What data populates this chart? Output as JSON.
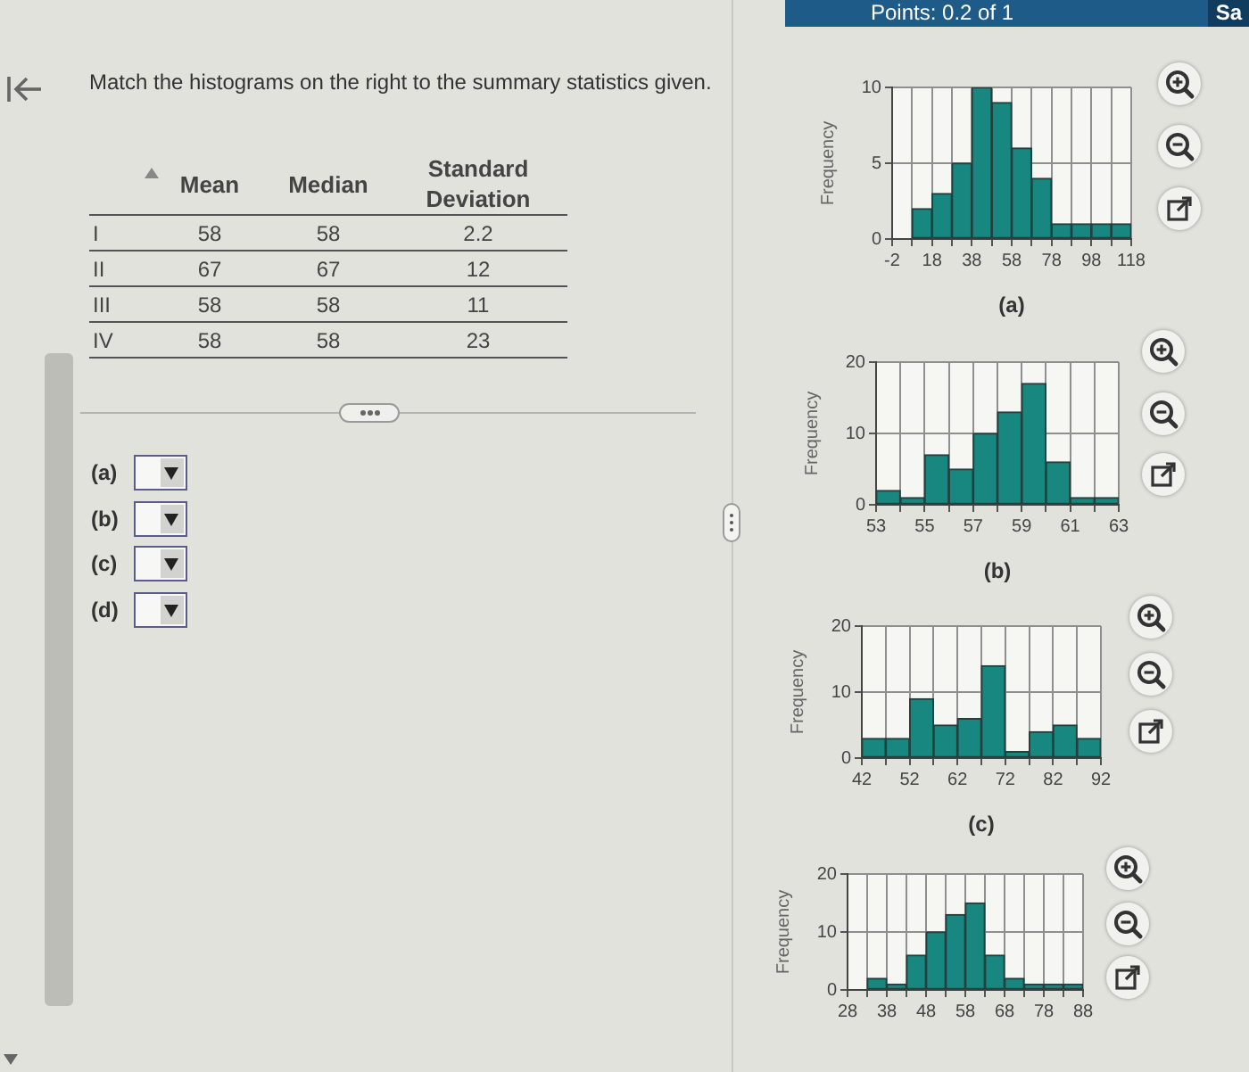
{
  "chart_data": [
    {
      "type": "other",
      "annotations": [
        "Points: 0.2 of 1",
        "Sa"
      ]
    },
    {
      "type": "other",
      "title": "Match the histograms on the right to the summary statistics given.",
      "annotations": [
        "Mean",
        "Median",
        "Standard Deviation",
        "I",
        "58",
        "58",
        "2.2",
        "II",
        "67",
        "67",
        "12",
        "III",
        "58",
        "58",
        "11",
        "IV",
        "58",
        "58",
        "23",
        "(a)",
        "(b)",
        "(c)",
        "(d)"
      ]
    },
    {
      "type": "histogram",
      "xlabel": "(a)",
      "ylabel": "Frequency",
      "bins": [
        8,
        18,
        28,
        38,
        48,
        58,
        68,
        78,
        88,
        98,
        108,
        118
      ],
      "values": [
        2,
        3,
        5,
        10,
        9,
        6,
        4,
        1,
        1,
        1,
        1
      ],
      "color": "#17877f",
      "xlim": [
        -2,
        118
      ],
      "xticks": [
        -2,
        {
          "value": 8,
          "label": null
        },
        18,
        {
          "value": 28,
          "label": null
        },
        38,
        {
          "value": 48,
          "label": null
        },
        58,
        {
          "value": 68,
          "label": null
        },
        78,
        {
          "value": 88,
          "label": null
        },
        98,
        {
          "value": 108,
          "label": null
        },
        118
      ],
      "ylim": [
        0,
        10
      ],
      "yticks": [
        0,
        5,
        10
      ],
      "grid": true
    },
    {
      "type": "histogram",
      "xlabel": "(b)",
      "ylabel": "Frequency",
      "bins": [
        53,
        54,
        55,
        56,
        57,
        58,
        59,
        60,
        61,
        62,
        63
      ],
      "values": [
        2,
        1,
        7,
        5,
        10,
        13,
        17,
        6,
        1,
        1
      ],
      "color": "#17877f",
      "xlim": [
        53,
        63
      ],
      "xticks": [
        53,
        {
          "value": 54,
          "label": null
        },
        55,
        {
          "value": 56,
          "label": null
        },
        57,
        {
          "value": 58,
          "label": null
        },
        59,
        {
          "value": 60,
          "label": null
        },
        61,
        {
          "value": 62,
          "label": null
        },
        63
      ],
      "ylim": [
        0,
        20
      ],
      "yticks": [
        0,
        10,
        20
      ],
      "grid": true
    },
    {
      "type": "histogram",
      "xlabel": "(c)",
      "ylabel": "Frequency",
      "bins": [
        42,
        47,
        52,
        57,
        62,
        67,
        72,
        77,
        82,
        87,
        92
      ],
      "values": [
        3,
        3,
        9,
        5,
        6,
        14,
        1,
        4,
        5,
        3
      ],
      "color": "#17877f",
      "xlim": [
        42,
        92
      ],
      "xticks": [
        42,
        {
          "value": 47,
          "label": null
        },
        52,
        {
          "value": 57,
          "label": null
        },
        62,
        {
          "value": 67,
          "label": null
        },
        72,
        {
          "value": 77,
          "label": null
        },
        82,
        {
          "value": 87,
          "label": null
        },
        92
      ],
      "ylim": [
        0,
        20
      ],
      "yticks": [
        0,
        10,
        20
      ],
      "grid": true
    },
    {
      "type": "histogram",
      "ylabel": "Frequency",
      "bins": [
        33,
        38,
        43,
        48,
        53,
        58,
        63,
        68,
        73,
        78,
        83,
        88
      ],
      "values": [
        2,
        1,
        6,
        10,
        13,
        15,
        6,
        2,
        1,
        1,
        1
      ],
      "color": "#17877f",
      "xlim": [
        28,
        88
      ],
      "xticks": [
        28,
        {
          "value": 33,
          "label": null
        },
        38,
        {
          "value": 43,
          "label": null
        },
        48,
        {
          "value": 53,
          "label": null
        },
        58,
        {
          "value": 63,
          "label": null
        },
        68,
        {
          "value": 73,
          "label": null
        },
        78,
        {
          "value": 83,
          "label": null
        },
        88
      ],
      "ylim": [
        0,
        20
      ],
      "yticks": [
        0,
        10,
        20
      ],
      "grid": true
    }
  ]
}
